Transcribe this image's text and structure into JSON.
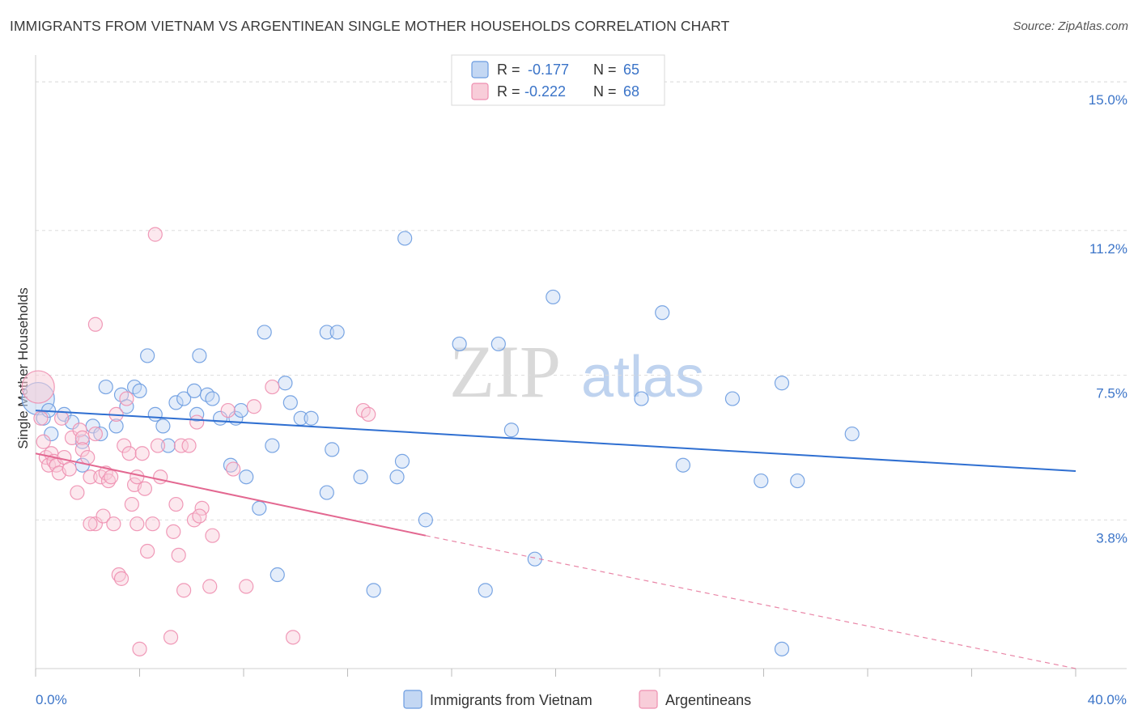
{
  "header": {
    "title": "IMMIGRANTS FROM VIETNAM VS ARGENTINEAN SINGLE MOTHER HOUSEHOLDS CORRELATION CHART",
    "source": "Source: ZipAtlas.com"
  },
  "colors": {
    "blue": "#6a9be0",
    "blue_fill": "#c3d7f3",
    "blue_line": "#2f6fd1",
    "pink": "#ee8fb0",
    "pink_fill": "#f8cdd9",
    "pink_line": "#e36891",
    "grid": "#dddddd",
    "tick_text": "#3b74c8"
  },
  "watermark": {
    "zip": "ZIP",
    "atlas": "atlas"
  },
  "chart_data": {
    "type": "scatter",
    "title": "IMMIGRANTS FROM VIETNAM VS ARGENTINEAN SINGLE MOTHER HOUSEHOLDS CORRELATION CHART",
    "xlabel": "",
    "ylabel": "Single Mother Households",
    "xlim": [
      0,
      40
    ],
    "ylim": [
      0,
      15.5
    ],
    "x_tick_labels": [
      "0.0%",
      "40.0%"
    ],
    "y_ticks": [
      3.8,
      7.5,
      11.2,
      15.0
    ],
    "y_tick_labels": [
      "3.8%",
      "7.5%",
      "11.2%",
      "15.0%"
    ],
    "legend": {
      "rows": [
        {
          "r_label": "R = ",
          "r_value": "-0.177",
          "n_label": "N = ",
          "n_value": "65"
        },
        {
          "r_label": "R = ",
          "r_value": "-0.222",
          "n_label": "N = ",
          "n_value": "68"
        }
      ]
    },
    "series": [
      {
        "name": "Immigrants from Vietnam",
        "color": "blue",
        "trend": {
          "x": [
            0,
            40
          ],
          "y": [
            6.6,
            5.05
          ]
        },
        "points": [
          {
            "x": 0.1,
            "y": 6.9,
            "big": true
          },
          {
            "x": 0.3,
            "y": 6.4
          },
          {
            "x": 0.5,
            "y": 6.6
          },
          {
            "x": 0.6,
            "y": 6.0
          },
          {
            "x": 1.1,
            "y": 6.5
          },
          {
            "x": 1.4,
            "y": 6.3
          },
          {
            "x": 1.8,
            "y": 5.8
          },
          {
            "x": 1.8,
            "y": 5.2
          },
          {
            "x": 2.2,
            "y": 6.2
          },
          {
            "x": 2.5,
            "y": 6.0
          },
          {
            "x": 2.7,
            "y": 7.2
          },
          {
            "x": 3.1,
            "y": 6.2
          },
          {
            "x": 3.3,
            "y": 7.0
          },
          {
            "x": 3.5,
            "y": 6.7
          },
          {
            "x": 3.8,
            "y": 7.2
          },
          {
            "x": 4.0,
            "y": 7.1
          },
          {
            "x": 4.3,
            "y": 8.0
          },
          {
            "x": 4.6,
            "y": 6.5
          },
          {
            "x": 4.9,
            "y": 6.2
          },
          {
            "x": 5.1,
            "y": 5.7
          },
          {
            "x": 5.4,
            "y": 6.8
          },
          {
            "x": 5.7,
            "y": 6.9
          },
          {
            "x": 6.1,
            "y": 7.1
          },
          {
            "x": 6.2,
            "y": 6.5
          },
          {
            "x": 6.3,
            "y": 8.0
          },
          {
            "x": 6.6,
            "y": 7.0
          },
          {
            "x": 6.8,
            "y": 6.9
          },
          {
            "x": 7.1,
            "y": 6.4
          },
          {
            "x": 7.5,
            "y": 5.2
          },
          {
            "x": 7.7,
            "y": 6.4
          },
          {
            "x": 7.9,
            "y": 6.6
          },
          {
            "x": 8.1,
            "y": 4.9
          },
          {
            "x": 8.6,
            "y": 4.1
          },
          {
            "x": 8.8,
            "y": 8.6
          },
          {
            "x": 9.1,
            "y": 5.7
          },
          {
            "x": 9.3,
            "y": 2.4
          },
          {
            "x": 9.6,
            "y": 7.3
          },
          {
            "x": 9.8,
            "y": 6.8
          },
          {
            "x": 10.2,
            "y": 6.4
          },
          {
            "x": 10.6,
            "y": 6.4
          },
          {
            "x": 11.2,
            "y": 8.6
          },
          {
            "x": 11.6,
            "y": 8.6
          },
          {
            "x": 11.2,
            "y": 4.5
          },
          {
            "x": 11.4,
            "y": 5.6
          },
          {
            "x": 12.5,
            "y": 4.9
          },
          {
            "x": 13.0,
            "y": 2.0
          },
          {
            "x": 13.9,
            "y": 4.9
          },
          {
            "x": 14.1,
            "y": 5.3
          },
          {
            "x": 14.2,
            "y": 11.0
          },
          {
            "x": 15.0,
            "y": 3.8
          },
          {
            "x": 16.3,
            "y": 8.3
          },
          {
            "x": 17.3,
            "y": 2.0
          },
          {
            "x": 17.8,
            "y": 8.3
          },
          {
            "x": 18.3,
            "y": 6.1
          },
          {
            "x": 19.2,
            "y": 2.8
          },
          {
            "x": 19.9,
            "y": 9.5
          },
          {
            "x": 23.3,
            "y": 6.9
          },
          {
            "x": 24.1,
            "y": 9.1
          },
          {
            "x": 24.9,
            "y": 5.2
          },
          {
            "x": 26.8,
            "y": 6.9
          },
          {
            "x": 27.9,
            "y": 4.8
          },
          {
            "x": 28.7,
            "y": 7.3
          },
          {
            "x": 28.7,
            "y": 0.5
          },
          {
            "x": 29.3,
            "y": 4.8
          },
          {
            "x": 31.4,
            "y": 6.0
          }
        ]
      },
      {
        "name": "Argentineans",
        "color": "pink",
        "trend": {
          "x": [
            0,
            15
          ],
          "y": [
            5.5,
            3.4
          ]
        },
        "trend_dashed": {
          "x": [
            15,
            40
          ],
          "y": [
            3.4,
            0.0
          ]
        },
        "points": [
          {
            "x": 0.1,
            "y": 7.2,
            "big": true
          },
          {
            "x": 0.2,
            "y": 6.4
          },
          {
            "x": 0.3,
            "y": 5.8
          },
          {
            "x": 0.4,
            "y": 5.4
          },
          {
            "x": 0.5,
            "y": 5.2
          },
          {
            "x": 0.6,
            "y": 5.5
          },
          {
            "x": 0.7,
            "y": 5.3
          },
          {
            "x": 0.8,
            "y": 5.2
          },
          {
            "x": 0.9,
            "y": 5.0
          },
          {
            "x": 1.0,
            "y": 6.4
          },
          {
            "x": 1.1,
            "y": 5.4
          },
          {
            "x": 1.3,
            "y": 5.1
          },
          {
            "x": 1.4,
            "y": 5.9
          },
          {
            "x": 1.6,
            "y": 4.5
          },
          {
            "x": 1.7,
            "y": 6.1
          },
          {
            "x": 1.8,
            "y": 5.9
          },
          {
            "x": 1.8,
            "y": 5.6
          },
          {
            "x": 2.0,
            "y": 5.4
          },
          {
            "x": 2.1,
            "y": 4.9
          },
          {
            "x": 2.3,
            "y": 6.0
          },
          {
            "x": 2.3,
            "y": 3.7
          },
          {
            "x": 2.3,
            "y": 8.8
          },
          {
            "x": 2.5,
            "y": 4.9
          },
          {
            "x": 2.6,
            "y": 3.9
          },
          {
            "x": 2.7,
            "y": 5.0
          },
          {
            "x": 2.8,
            "y": 4.8
          },
          {
            "x": 2.9,
            "y": 4.9
          },
          {
            "x": 3.0,
            "y": 3.7
          },
          {
            "x": 3.1,
            "y": 6.5
          },
          {
            "x": 3.2,
            "y": 2.4
          },
          {
            "x": 3.3,
            "y": 2.3
          },
          {
            "x": 3.4,
            "y": 5.7
          },
          {
            "x": 3.5,
            "y": 6.9
          },
          {
            "x": 3.6,
            "y": 5.5
          },
          {
            "x": 3.7,
            "y": 4.2
          },
          {
            "x": 3.8,
            "y": 4.7
          },
          {
            "x": 3.9,
            "y": 4.9
          },
          {
            "x": 4.0,
            "y": 0.5
          },
          {
            "x": 4.1,
            "y": 5.5
          },
          {
            "x": 4.2,
            "y": 4.6
          },
          {
            "x": 4.3,
            "y": 3.0
          },
          {
            "x": 4.5,
            "y": 3.7
          },
          {
            "x": 4.6,
            "y": 11.1
          },
          {
            "x": 4.7,
            "y": 5.7
          },
          {
            "x": 4.8,
            "y": 4.9
          },
          {
            "x": 5.2,
            "y": 0.8
          },
          {
            "x": 5.3,
            "y": 3.5
          },
          {
            "x": 5.4,
            "y": 4.2
          },
          {
            "x": 5.5,
            "y": 2.9
          },
          {
            "x": 5.6,
            "y": 5.7
          },
          {
            "x": 5.7,
            "y": 2.0
          },
          {
            "x": 5.9,
            "y": 5.7
          },
          {
            "x": 6.1,
            "y": 3.8
          },
          {
            "x": 6.2,
            "y": 6.3
          },
          {
            "x": 6.4,
            "y": 4.1
          },
          {
            "x": 6.7,
            "y": 2.1
          },
          {
            "x": 6.8,
            "y": 3.4
          },
          {
            "x": 7.4,
            "y": 6.6
          },
          {
            "x": 7.6,
            "y": 5.1
          },
          {
            "x": 8.1,
            "y": 2.1
          },
          {
            "x": 8.4,
            "y": 6.7
          },
          {
            "x": 9.1,
            "y": 7.2
          },
          {
            "x": 9.9,
            "y": 0.8
          },
          {
            "x": 12.6,
            "y": 6.6
          },
          {
            "x": 12.8,
            "y": 6.5
          },
          {
            "x": 2.1,
            "y": 3.7
          },
          {
            "x": 3.9,
            "y": 3.7
          },
          {
            "x": 6.3,
            "y": 3.9
          }
        ]
      }
    ]
  }
}
